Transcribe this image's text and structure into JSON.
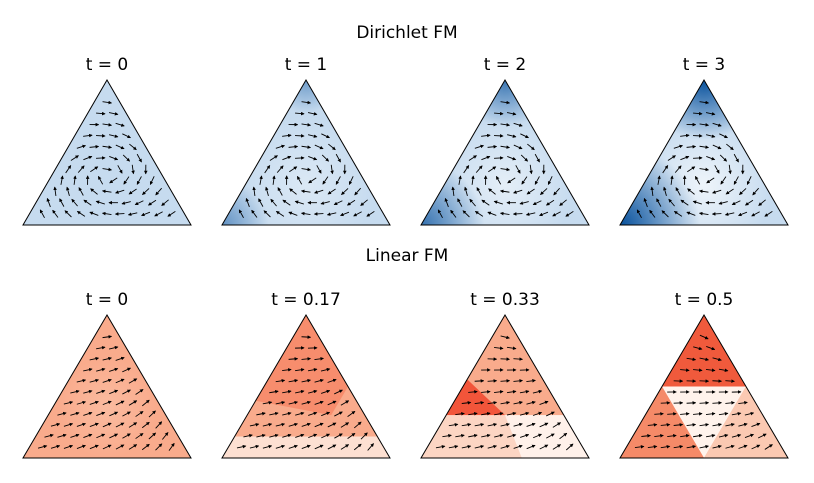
{
  "chart_data": [
    {
      "type": "ternary",
      "title": "Dirichlet FM",
      "panels": [
        "t = 0",
        "t = 1",
        "t = 2",
        "t = 3"
      ],
      "color": "#2171b5"
    },
    {
      "type": "ternary",
      "title": "Linear FM",
      "panels": [
        "t = 0",
        "t = 0.17",
        "t = 0.33",
        "t = 0.5"
      ],
      "color": "#e34a33"
    }
  ]
}
